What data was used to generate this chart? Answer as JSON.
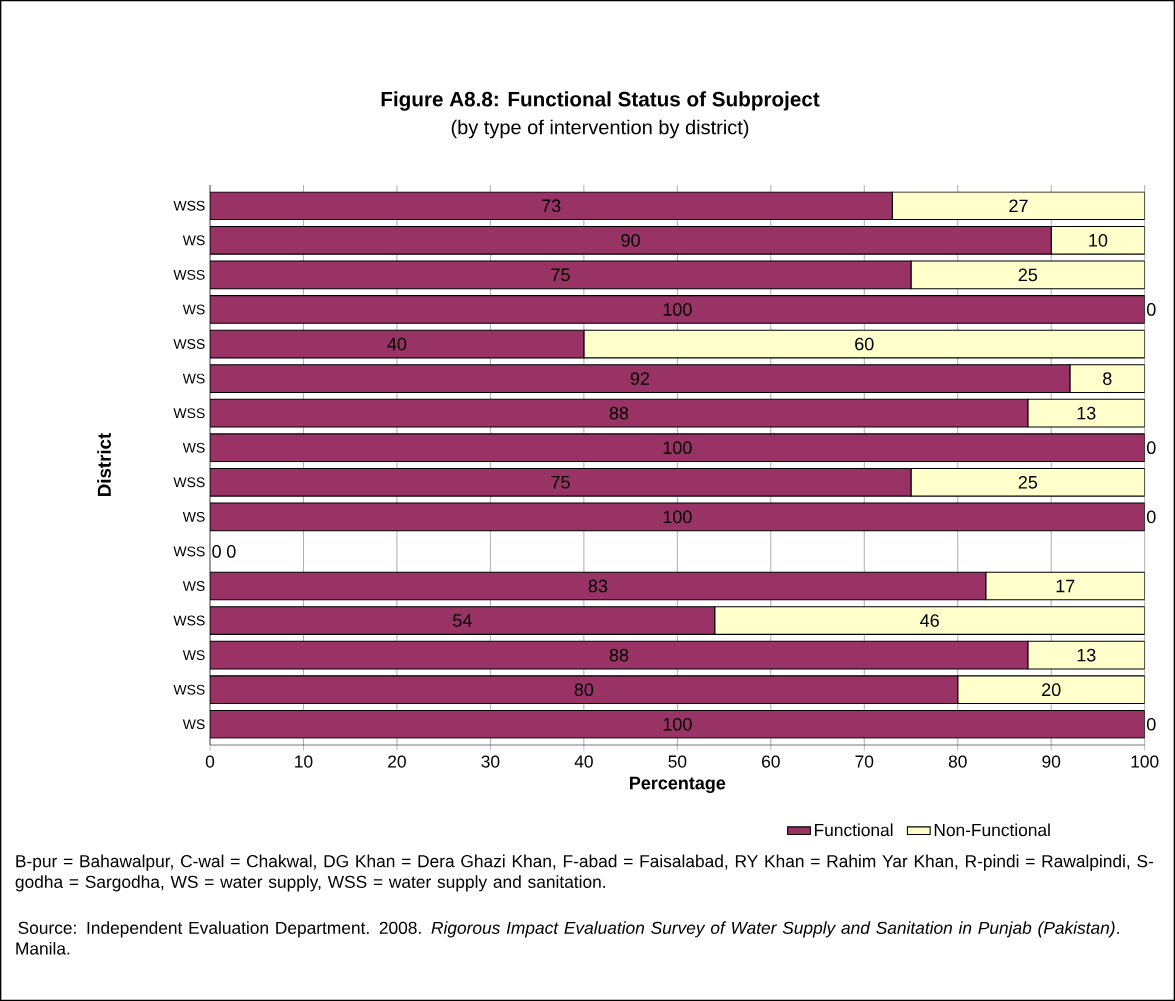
{
  "chart_data": {
    "type": "bar",
    "orientation": "horizontal",
    "stacked": true,
    "title": "Figure A8.8: Functional Status of Subproject",
    "subtitle": "(by type of intervention by district)",
    "xlabel": "Percentage",
    "ylabel": "District",
    "categories": [
      "WSS",
      "WS",
      "WSS",
      "WS",
      "WSS",
      "WS",
      "WSS",
      "WS",
      "WSS",
      "WS",
      "WSS",
      "WS",
      "WSS",
      "WS",
      "WSS",
      "WS"
    ],
    "series": [
      {
        "name": "Functional",
        "color": "#993366",
        "values": [
          73,
          90,
          75,
          100,
          40,
          92,
          87.5,
          100,
          75,
          100,
          0,
          83,
          54,
          87.5,
          80,
          100
        ],
        "value_labels": [
          "73",
          "90",
          "75",
          "100",
          "40",
          "92",
          "88",
          "100",
          "75",
          "100",
          "0",
          "83",
          "54",
          "88",
          "80",
          "100"
        ]
      },
      {
        "name": "Non-Functional",
        "color": "#ffffcc",
        "values": [
          27,
          10,
          25,
          0,
          60,
          8,
          12.5,
          0,
          25,
          0,
          0,
          17,
          46,
          12.5,
          20,
          0
        ],
        "value_labels": [
          "27",
          "10",
          "25",
          "0",
          "60",
          "8",
          "13",
          "0",
          "25",
          "0",
          "0",
          "17",
          "46",
          "13",
          "20",
          "0"
        ]
      }
    ],
    "xlim": [
      0,
      100
    ],
    "xticks": [
      0,
      10,
      20,
      30,
      40,
      50,
      60,
      70,
      80,
      90,
      100
    ],
    "grid": "x",
    "legend": "bottom right",
    "annotations": [
      "B-pur = Bahawalpur, C-wal = Chakwal, DG Khan = Dera Ghazi Khan, F-abad = Faisalabad, RY Khan = Rahim Yar Khan, R-pindi = Rawalpindi, S-godha = Sargodha, WS = water supply, WSS = water supply and sanitation.",
      "Source: Independent Evaluation Department. 2008. *Rigorous Impact Evaluation Survey of Water Supply and Sanitation in Punjab (Pakistan)*. Manila."
    ]
  }
}
